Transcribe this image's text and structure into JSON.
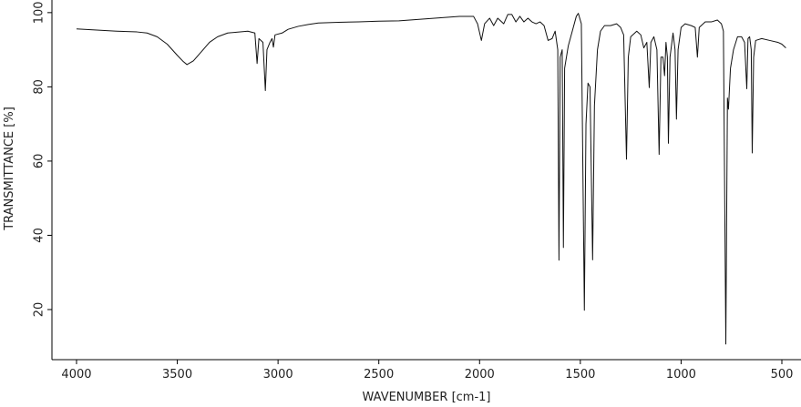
{
  "chart_data": {
    "type": "line",
    "xlabel": "WAVENUMBER [cm-1]",
    "ylabel": "TRANSMITTANCE [%]",
    "color": "#111111",
    "xlim": [
      4122,
      405
    ],
    "ylim": [
      6.5,
      103.4
    ],
    "xticks": [
      4000,
      3500,
      3000,
      2500,
      2000,
      1500,
      1000,
      500
    ],
    "yticks": [
      20,
      40,
      60,
      80,
      100
    ],
    "x": [
      4000,
      3900,
      3800,
      3700,
      3650,
      3600,
      3550,
      3500,
      3470,
      3452,
      3420,
      3380,
      3340,
      3300,
      3250,
      3150,
      3115,
      3104,
      3095,
      3075,
      3063,
      3055,
      3040,
      3030,
      3023,
      3015,
      2980,
      2950,
      2900,
      2850,
      2800,
      2700,
      2600,
      2500,
      2400,
      2300,
      2200,
      2100,
      2030,
      2010,
      1991,
      1975,
      1950,
      1930,
      1910,
      1880,
      1860,
      1840,
      1820,
      1800,
      1780,
      1760,
      1740,
      1720,
      1700,
      1680,
      1660,
      1640,
      1625,
      1612,
      1606,
      1600,
      1590,
      1584,
      1578,
      1560,
      1540,
      1520,
      1510,
      1495,
      1480,
      1472,
      1462,
      1452,
      1439,
      1430,
      1415,
      1400,
      1380,
      1350,
      1320,
      1300,
      1285,
      1271,
      1262,
      1250,
      1220,
      1200,
      1185,
      1170,
      1158,
      1150,
      1135,
      1120,
      1109,
      1100,
      1090,
      1082,
      1075,
      1068,
      1063,
      1055,
      1040,
      1030,
      1023,
      1015,
      1000,
      980,
      950,
      930,
      919,
      910,
      880,
      850,
      820,
      800,
      790,
      778,
      770,
      765,
      755,
      740,
      720,
      700,
      685,
      674,
      668,
      660,
      652,
      647,
      640,
      630,
      600,
      560,
      520,
      500,
      480
    ],
    "values": [
      95.6,
      95.3,
      95,
      94.8,
      94.5,
      93.5,
      91.5,
      88.5,
      86.8,
      86,
      87,
      89.5,
      92,
      93.5,
      94.5,
      95,
      94.5,
      86.3,
      93,
      92,
      79,
      90,
      92,
      93,
      90.7,
      94,
      94.5,
      95.5,
      96.3,
      96.8,
      97.2,
      97.4,
      97.5,
      97.7,
      97.8,
      98.2,
      98.6,
      99,
      99,
      97,
      92.5,
      97,
      98.5,
      96.5,
      98.5,
      97,
      99.5,
      99.5,
      97.5,
      99,
      97.5,
      98.5,
      97.5,
      97,
      97.5,
      96.5,
      92.5,
      93,
      95,
      90,
      33.3,
      88,
      90,
      36.7,
      85,
      91,
      95,
      99,
      99.8,
      97,
      19.8,
      70,
      81,
      80,
      33.4,
      75,
      90,
      95,
      96.5,
      96.5,
      97,
      96,
      94,
      60.5,
      88,
      93.5,
      95,
      94,
      90.5,
      92,
      79.8,
      92,
      93.5,
      90,
      61.8,
      88,
      88,
      83,
      92,
      88,
      64.8,
      88,
      94.5,
      90,
      71.3,
      90,
      96,
      97,
      96.5,
      96,
      88,
      96,
      97.5,
      97.5,
      98,
      97,
      95,
      10.7,
      77,
      74,
      85,
      90,
      93.5,
      93.5,
      92,
      79.5,
      93,
      93.5,
      90,
      62.2,
      88,
      92.5,
      93,
      92.5,
      92,
      91.5,
      90.5
    ]
  }
}
